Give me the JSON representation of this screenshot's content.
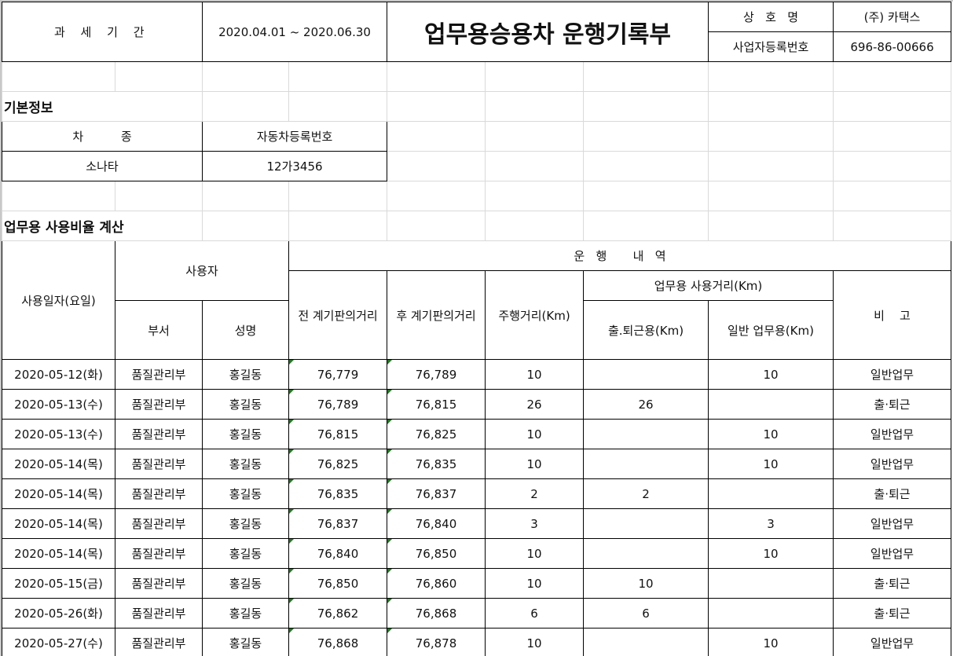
{
  "header": {
    "period_label": "과 세 기 간",
    "period_value": "2020.04.01  ~  2020.06.30",
    "title": "업무용승용차 운행기록부",
    "company_label": "상   호   명",
    "company_value": "(주) 카택스",
    "bizno_label": "사업자등록번호",
    "bizno_value": "696-86-00666"
  },
  "basic": {
    "section_title": "기본정보",
    "car_type_label": "차          종",
    "reg_no_label": "자동차등록번호",
    "car_type": "소나타",
    "reg_no": "12가3456"
  },
  "usage": {
    "section_title": "업무용 사용비율 계산",
    "col_date": "사용일자(요일)",
    "col_user": "사용자",
    "col_operation": "운   행       내   역",
    "col_dept": "부서",
    "col_name": "성명",
    "col_before": "전 계기판의거리",
    "col_after": "후 계기판의거리",
    "col_distance": "주행거리(Km)",
    "col_business": "업무용 사용거리(Km)",
    "col_commute": "출.퇴근용(Km)",
    "col_general": "일반 업무용(Km)",
    "col_note": "비    고",
    "rows": [
      {
        "date": "2020-05-12(화)",
        "dept": "품질관리부",
        "name": "홍길동",
        "before": "76,779",
        "after": "76,789",
        "dist": "10",
        "commute": "",
        "general": "10",
        "note": "일반업무"
      },
      {
        "date": "2020-05-13(수)",
        "dept": "품질관리부",
        "name": "홍길동",
        "before": "76,789",
        "after": "76,815",
        "dist": "26",
        "commute": "26",
        "general": "",
        "note": "출·퇴근"
      },
      {
        "date": "2020-05-13(수)",
        "dept": "품질관리부",
        "name": "홍길동",
        "before": "76,815",
        "after": "76,825",
        "dist": "10",
        "commute": "",
        "general": "10",
        "note": "일반업무"
      },
      {
        "date": "2020-05-14(목)",
        "dept": "품질관리부",
        "name": "홍길동",
        "before": "76,825",
        "after": "76,835",
        "dist": "10",
        "commute": "",
        "general": "10",
        "note": "일반업무"
      },
      {
        "date": "2020-05-14(목)",
        "dept": "품질관리부",
        "name": "홍길동",
        "before": "76,835",
        "after": "76,837",
        "dist": "2",
        "commute": "2",
        "general": "",
        "note": "출·퇴근"
      },
      {
        "date": "2020-05-14(목)",
        "dept": "품질관리부",
        "name": "홍길동",
        "before": "76,837",
        "after": "76,840",
        "dist": "3",
        "commute": "",
        "general": "3",
        "note": "일반업무"
      },
      {
        "date": "2020-05-14(목)",
        "dept": "품질관리부",
        "name": "홍길동",
        "before": "76,840",
        "after": "76,850",
        "dist": "10",
        "commute": "",
        "general": "10",
        "note": "일반업무"
      },
      {
        "date": "2020-05-15(금)",
        "dept": "품질관리부",
        "name": "홍길동",
        "before": "76,850",
        "after": "76,860",
        "dist": "10",
        "commute": "10",
        "general": "",
        "note": "출·퇴근"
      },
      {
        "date": "2020-05-26(화)",
        "dept": "품질관리부",
        "name": "홍길동",
        "before": "76,862",
        "after": "76,868",
        "dist": "6",
        "commute": "6",
        "general": "",
        "note": "출·퇴근"
      },
      {
        "date": "2020-05-27(수)",
        "dept": "품질관리부",
        "name": "홍길동",
        "before": "76,868",
        "after": "76,878",
        "dist": "10",
        "commute": "",
        "general": "10",
        "note": "일반업무"
      }
    ]
  }
}
